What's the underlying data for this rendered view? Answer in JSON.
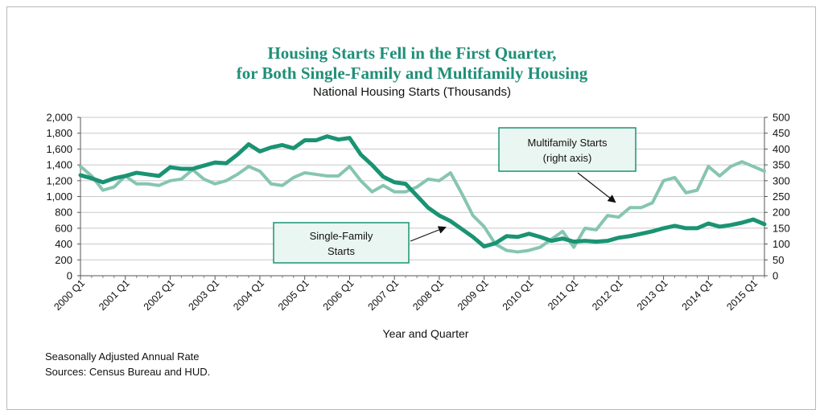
{
  "chart_data": {
    "type": "line",
    "title_line1": "Housing Starts Fell in the First Quarter,",
    "title_line2": "for Both Single-Family and Multifamily Housing",
    "subtitle": "National Housing Starts (Thousands)",
    "xlabel": "Year and Quarter",
    "x_tick_labels": [
      "2000 Q1",
      "2001 Q1",
      "2002 Q1",
      "2003 Q1",
      "2004 Q1",
      "2005 Q1",
      "2006 Q1",
      "2007 Q1",
      "2008 Q1",
      "2009 Q1",
      "2010 Q1",
      "2011 Q1",
      "2012 Q1",
      "2013 Q1",
      "2014 Q1",
      "2015 Q1"
    ],
    "left_axis": {
      "ylim": [
        0,
        2000
      ],
      "ticks": [
        "0",
        "200",
        "400",
        "600",
        "800",
        "1,000",
        "1,200",
        "1,400",
        "1,600",
        "1,800",
        "2,000"
      ]
    },
    "right_axis": {
      "ylim": [
        0,
        500
      ],
      "ticks": [
        "0",
        "50",
        "100",
        "150",
        "200",
        "250",
        "300",
        "350",
        "400",
        "450",
        "500"
      ]
    },
    "series": [
      {
        "name": "Single-Family Starts",
        "axis": "left",
        "color": "#1a9373",
        "values": [
          1270,
          1230,
          1180,
          1230,
          1260,
          1300,
          1280,
          1260,
          1370,
          1350,
          1350,
          1390,
          1430,
          1420,
          1530,
          1660,
          1570,
          1620,
          1650,
          1610,
          1710,
          1710,
          1760,
          1720,
          1740,
          1530,
          1400,
          1250,
          1180,
          1160,
          1010,
          860,
          760,
          690,
          590,
          490,
          370,
          410,
          500,
          490,
          530,
          490,
          440,
          470,
          430,
          440,
          430,
          440,
          480,
          500,
          530,
          560,
          600,
          630,
          600,
          600,
          660,
          620,
          640,
          670,
          710,
          650
        ]
      },
      {
        "name": "Multifamily Starts",
        "axis": "right",
        "color": "#86c5b1",
        "values": [
          345,
          315,
          270,
          280,
          315,
          290,
          290,
          285,
          300,
          305,
          335,
          305,
          290,
          300,
          320,
          345,
          330,
          290,
          285,
          310,
          325,
          320,
          315,
          315,
          345,
          300,
          265,
          285,
          265,
          265,
          280,
          305,
          300,
          325,
          260,
          190,
          155,
          100,
          80,
          75,
          80,
          90,
          115,
          140,
          90,
          150,
          145,
          190,
          185,
          215,
          215,
          230,
          300,
          310,
          262,
          270,
          345,
          315,
          345,
          360,
          345,
          330
        ]
      }
    ],
    "callouts": {
      "multifamily_line1": "Multifamily Starts",
      "multifamily_line2": "(right axis)",
      "single_line1": "Single-Family",
      "single_line2": "Starts"
    },
    "grid": true,
    "notes": [
      "Seasonally Adjusted Annual Rate",
      "Sources: Census Bureau and HUD."
    ]
  }
}
